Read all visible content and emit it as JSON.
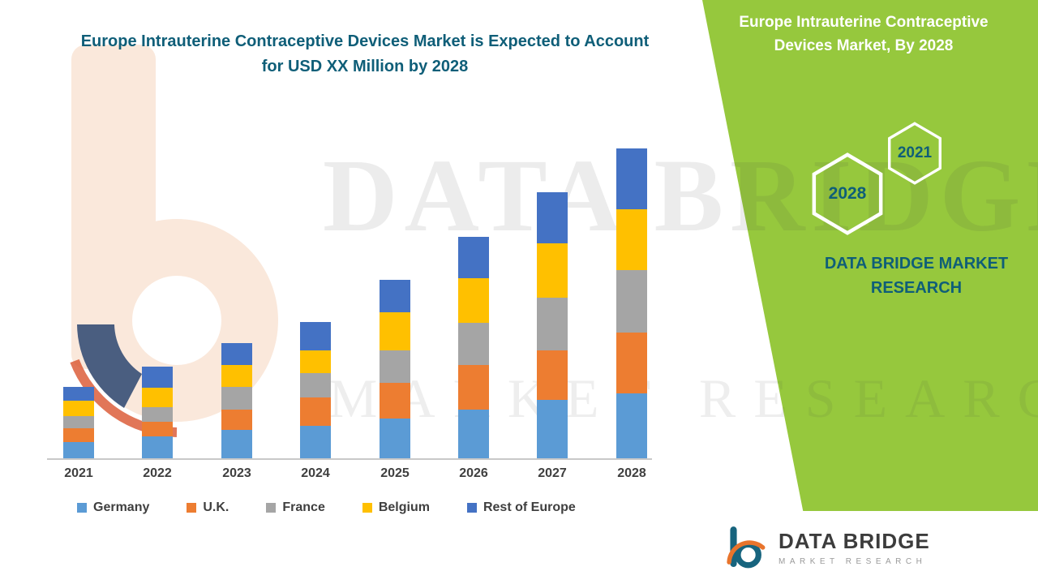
{
  "main": {
    "title": "Europe Intrauterine Contraceptive Devices Market is Expected to Account for USD XX Million by 2028"
  },
  "side_panel": {
    "title": "Europe Intrauterine Contraceptive Devices Market, By 2028",
    "hexagons": [
      "2021",
      "2028"
    ],
    "brand_text": "DATA BRIDGE MARKET RESEARCH",
    "panel_color": "#96C83D",
    "accent_text_color": "#0F5E78"
  },
  "watermark": {
    "line1": "DATA BRIDGE",
    "line2": "MARKET RESEARCH"
  },
  "logo": {
    "title": "DATA BRIDGE",
    "subtitle": "MARKET RESEARCH"
  },
  "chart_data": {
    "type": "bar",
    "stacked": true,
    "title": "Europe Intrauterine Contraceptive Devices Market is Expected to Account for USD XX Million by 2028",
    "categories": [
      "2021",
      "2022",
      "2023",
      "2024",
      "2025",
      "2026",
      "2027",
      "2028"
    ],
    "series": [
      {
        "name": "Germany",
        "color": "#5B9BD5",
        "values": [
          20,
          27,
          35,
          40,
          49,
          60,
          72,
          80
        ]
      },
      {
        "name": "U.K.",
        "color": "#ED7D31",
        "values": [
          17,
          18,
          25,
          35,
          44,
          55,
          61,
          75
        ]
      },
      {
        "name": "France",
        "color": "#A5A5A5",
        "values": [
          15,
          18,
          28,
          30,
          40,
          52,
          65,
          77
        ]
      },
      {
        "name": "Belgium",
        "color": "#FFC000",
        "values": [
          19,
          24,
          27,
          28,
          47,
          55,
          67,
          75
        ]
      },
      {
        "name": "Rest of Europe",
        "color": "#4472C4",
        "values": [
          17,
          26,
          27,
          35,
          40,
          51,
          63,
          75
        ]
      }
    ],
    "xlabel": "",
    "ylabel": "",
    "y_axis_visible": false,
    "value_units": "relative (no axis values shown; USD XX Million unlabeled)",
    "legend_position": "bottom",
    "grid": false
  }
}
